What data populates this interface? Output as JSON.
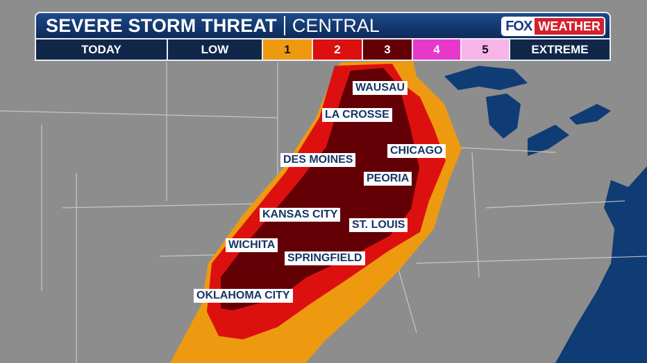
{
  "header": {
    "title": "SEVERE STORM THREAT",
    "region": "CENTRAL",
    "logo": {
      "fox": "FOX",
      "weather": "WEATHER"
    }
  },
  "scale": {
    "day": "TODAY",
    "low": "LOW",
    "levels": [
      {
        "label": "1",
        "color": "#ee9a10"
      },
      {
        "label": "2",
        "color": "#dd1010"
      },
      {
        "label": "3",
        "color": "#620006"
      },
      {
        "label": "4",
        "color": "#e838cc"
      },
      {
        "label": "5",
        "color": "#f8b4e8"
      }
    ],
    "high": "EXTREME"
  },
  "cities": [
    "WAUSAU",
    "LA CROSSE",
    "CHICAGO",
    "DES MOINES",
    "PEORIA",
    "KANSAS CITY",
    "ST. LOUIS",
    "WICHITA",
    "SPRINGFIELD",
    "OKLAHOMA CITY"
  ],
  "colors": {
    "land": "#8e8e8e",
    "water": "#0f3c74"
  }
}
